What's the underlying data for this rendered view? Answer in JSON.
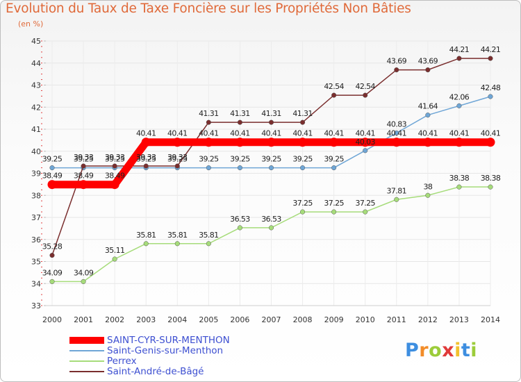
{
  "chart_data": {
    "type": "line",
    "title": "Evolution du Taux de Taxe Foncière sur les Propriétés Non Bâties",
    "ylabel": "(en %)",
    "xlabel": "",
    "ylim": [
      33,
      45
    ],
    "yticks": [
      "33",
      "34",
      "35",
      "36",
      "37",
      "38",
      "39",
      "40",
      "41",
      "42",
      "43",
      "44",
      "45"
    ],
    "categories": [
      "2000",
      "2001",
      "2002",
      "2003",
      "2004",
      "2005",
      "2006",
      "2007",
      "2008",
      "2009",
      "2010",
      "2011",
      "2012",
      "2013",
      "2014"
    ],
    "series": [
      {
        "name": "SAINT-CYR-SUR-MENTHON",
        "color": "#ff0000",
        "values": [
          38.49,
          38.49,
          38.49,
          40.41,
          40.41,
          40.41,
          40.41,
          40.41,
          40.41,
          40.41,
          40.41,
          40.41,
          40.41,
          40.41,
          40.41
        ],
        "labels": [
          "38.49",
          "38.49",
          "38.49",
          "40.41",
          "40.41",
          "40.41",
          "40.41",
          "40.41",
          "40.41",
          "40.41",
          "40.41",
          "40.41",
          "40.41",
          "40.41",
          "40.41"
        ]
      },
      {
        "name": "Saint-Genis-sur-Menthon",
        "color": "#6fa6d6",
        "values": [
          39.25,
          39.25,
          39.25,
          39.25,
          39.25,
          39.25,
          39.25,
          39.25,
          39.25,
          39.25,
          40.03,
          40.83,
          41.64,
          42.06,
          42.48
        ],
        "labels": [
          "39.25",
          "39.25",
          "39.25",
          "39.25",
          "39.25",
          "39.25",
          "39.25",
          "39.25",
          "39.25",
          "39.25",
          "40.03",
          "40.83",
          "41.64",
          "42.06",
          "42.48"
        ]
      },
      {
        "name": "Perrex",
        "color": "#a6dc7a",
        "values": [
          34.09,
          34.09,
          35.11,
          35.81,
          35.81,
          35.81,
          36.53,
          36.53,
          37.25,
          37.25,
          37.25,
          37.81,
          38.0,
          38.38,
          38.38
        ],
        "labels": [
          "34.09",
          "34.09",
          "35.11",
          "35.81",
          "35.81",
          "35.81",
          "36.53",
          "36.53",
          "37.25",
          "37.25",
          "37.25",
          "37.81",
          "38",
          "38.38",
          "38.38"
        ]
      },
      {
        "name": "Saint-André-de-Bâgé",
        "color": "#7a2e2e",
        "values": [
          35.28,
          39.33,
          39.33,
          39.33,
          39.33,
          41.31,
          41.31,
          41.31,
          41.31,
          42.54,
          42.54,
          43.69,
          43.69,
          44.21,
          44.21
        ],
        "labels": [
          "35.28",
          "39.33",
          "39.33",
          "39.33",
          "39.33",
          "41.31",
          "41.31",
          "41.31",
          "41.31",
          "42.54",
          "42.54",
          "43.69",
          "43.69",
          "44.21",
          "44.21"
        ]
      }
    ],
    "grid": true,
    "legend_position": "bottom-left"
  },
  "logo": {
    "letters": [
      "P",
      "r",
      "o",
      "x",
      "i",
      "t",
      "i"
    ],
    "colors": [
      "#3d8ee0",
      "#f28c28",
      "#9ccc3a",
      "#e03a3a",
      "#f2c12e",
      "#3d8ee0",
      "#9ccc3a"
    ]
  }
}
